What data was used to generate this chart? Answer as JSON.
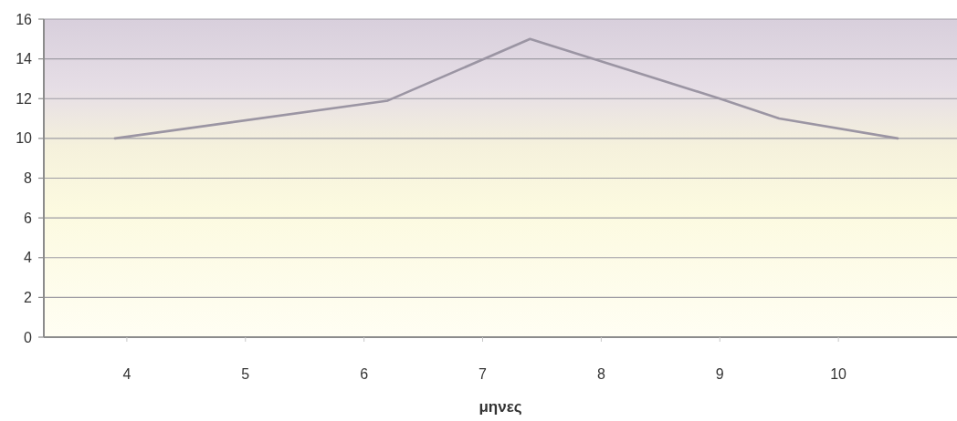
{
  "chart_data": {
    "type": "line",
    "xlabel": "μηνες",
    "x": [
      3.9,
      6.2,
      7.4,
      9.0,
      9.5,
      10.5
    ],
    "xlim": [
      3.3,
      11
    ],
    "xticks": [
      4,
      5,
      6,
      7,
      8,
      9,
      10
    ],
    "ylim": [
      0,
      16
    ],
    "yticks": [
      0,
      2,
      4,
      6,
      8,
      10,
      12,
      14,
      16
    ],
    "grid": "y",
    "series": [
      {
        "color": "#9b95a3",
        "values": [
          10,
          11.9,
          15,
          12,
          11,
          10
        ]
      }
    ]
  }
}
